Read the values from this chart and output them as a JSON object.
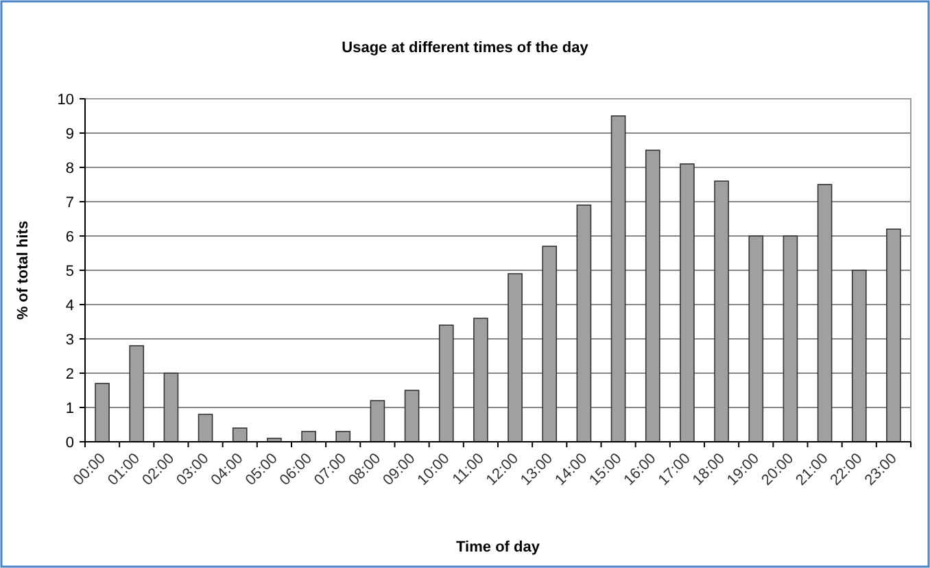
{
  "chart_data": {
    "type": "bar",
    "title": "Usage at different times of the day",
    "xlabel": "Time of day",
    "ylabel": "% of total hits",
    "categories": [
      "00:00",
      "01:00",
      "02:00",
      "03:00",
      "04:00",
      "05:00",
      "06:00",
      "07:00",
      "08:00",
      "09:00",
      "10:00",
      "11:00",
      "12:00",
      "13:00",
      "14:00",
      "15:00",
      "16:00",
      "17:00",
      "18:00",
      "19:00",
      "20:00",
      "21:00",
      "22:00",
      "23:00"
    ],
    "values": [
      1.7,
      2.8,
      2.0,
      0.8,
      0.4,
      0.1,
      0.3,
      0.3,
      1.2,
      1.5,
      3.4,
      3.6,
      4.9,
      5.7,
      6.9,
      9.5,
      8.5,
      8.1,
      7.6,
      6.0,
      6.0,
      7.5,
      5.0,
      6.2
    ],
    "color": "#a0a0a0",
    "ylim": [
      0,
      10
    ],
    "yticks": [
      0,
      1,
      2,
      3,
      4,
      5,
      6,
      7,
      8,
      9,
      10
    ],
    "grid": "y"
  }
}
